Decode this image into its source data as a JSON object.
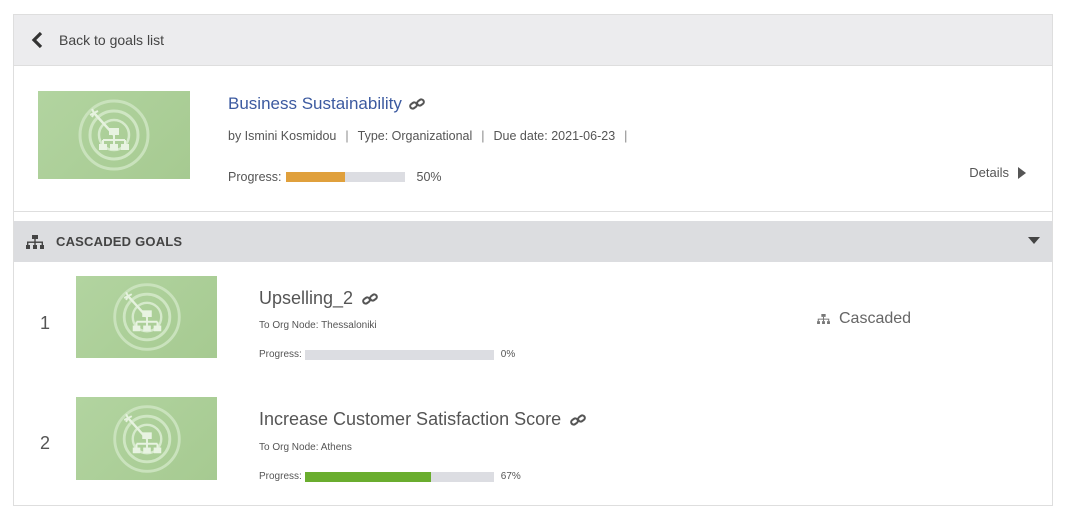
{
  "topbar": {
    "back_label": "Back to goals list"
  },
  "goal": {
    "title": "Business Sustainability",
    "author": "by Ismini Kosmidou",
    "type": "Type: Organizational",
    "due": "Due date: 2021-06-23",
    "trailing_sep": "|",
    "progress_label": "Progress:",
    "progress_value": 0.5,
    "progress_text": "50%",
    "details_label": "Details",
    "progress_color": "#e0a03c"
  },
  "cascaded": {
    "section_title": "CASCADED GOALS",
    "items": [
      {
        "number": "1",
        "title": "Upselling_2",
        "node": "To Org Node: Thessaloniki",
        "progress_label": "Progress:",
        "progress_value": 0.0,
        "progress_text": "0%",
        "status": "Cascaded"
      },
      {
        "number": "2",
        "title": "Increase Customer Satisfaction Score",
        "node": "To Org Node: Athens",
        "progress_label": "Progress:",
        "progress_value": 0.67,
        "progress_text": "67%",
        "progress_color": "#6aad2e"
      }
    ]
  },
  "icons": [
    "chevron-left-icon",
    "link-icon",
    "org-chart-icon",
    "caret-down-icon",
    "triangle-right-icon",
    "goal-target-icon"
  ]
}
